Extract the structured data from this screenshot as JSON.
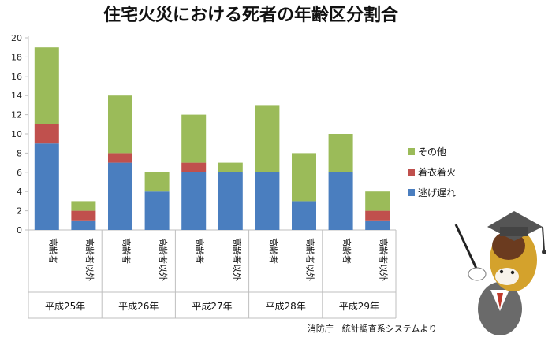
{
  "chart_data": {
    "type": "bar",
    "stacked": true,
    "title": "住宅火災における死者の年齢区分割合",
    "xlabel": "",
    "ylabel": "",
    "ylim": [
      0,
      20
    ],
    "yticks": [
      0,
      2,
      4,
      6,
      8,
      10,
      12,
      14,
      16,
      18,
      20
    ],
    "grid": false,
    "legend_position": "right",
    "categories": [
      "高齢者",
      "高齢者以外",
      "高齢者",
      "高齢者以外",
      "高齢者",
      "高齢者以外",
      "高齢者",
      "高齢者以外",
      "高齢者",
      "高齢者以外"
    ],
    "groups": [
      "平成25年",
      "平成26年",
      "平成27年",
      "平成28年",
      "平成29年"
    ],
    "series": [
      {
        "name": "逃げ遅れ",
        "color": "#4a7ebf",
        "values": [
          9,
          1,
          7,
          4,
          6,
          6,
          6,
          3,
          6,
          1
        ]
      },
      {
        "name": "着衣着火",
        "color": "#c0504d",
        "values": [
          2,
          1,
          1,
          0,
          1,
          0,
          0,
          0,
          0,
          1
        ]
      },
      {
        "name": "その他",
        "color": "#9bbb59",
        "values": [
          8,
          1,
          6,
          2,
          5,
          1,
          7,
          5,
          4,
          2
        ]
      }
    ],
    "source": "消防庁　統計調査系システムより"
  }
}
